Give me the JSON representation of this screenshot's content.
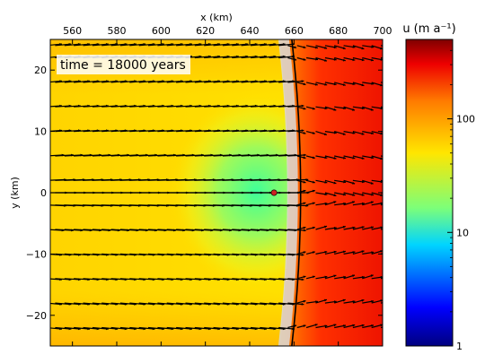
{
  "chart_data": {
    "type": "heatmap",
    "title": "",
    "xlabel": "x (km)",
    "ylabel": "y (km)",
    "xlim": [
      550,
      700
    ],
    "ylim": [
      -25,
      25
    ],
    "x_ticks": [
      560,
      580,
      600,
      620,
      640,
      660,
      680,
      700
    ],
    "y_ticks": [
      -20,
      -10,
      0,
      10,
      20
    ],
    "x_tick_labels": [
      "560",
      "580",
      "600",
      "620",
      "640",
      "660",
      "680",
      "700"
    ],
    "y_tick_labels": [
      "−20",
      "−10",
      "0",
      "10",
      "20"
    ],
    "x_axis_position": "top",
    "annotation": "time = 18000 years",
    "colorbar": {
      "label": "u (m a⁻¹)",
      "scale": "log",
      "range": [
        1,
        500
      ],
      "ticks": [
        1,
        10,
        100
      ],
      "tick_labels": [
        "1",
        "10",
        "100"
      ],
      "colormap": "jet"
    },
    "grounding_line_x": 663,
    "grounding_line_curvature": 4,
    "marked_point": {
      "x": 651,
      "y": 0,
      "color": "#cc2222"
    },
    "vector_rows_y": [
      24,
      22,
      18,
      14,
      10,
      6,
      2,
      0,
      -2,
      -6,
      -10,
      -14,
      -18,
      -22
    ],
    "vector_field_color": "#000000",
    "grounding_band_color": "#d9d9d9"
  }
}
